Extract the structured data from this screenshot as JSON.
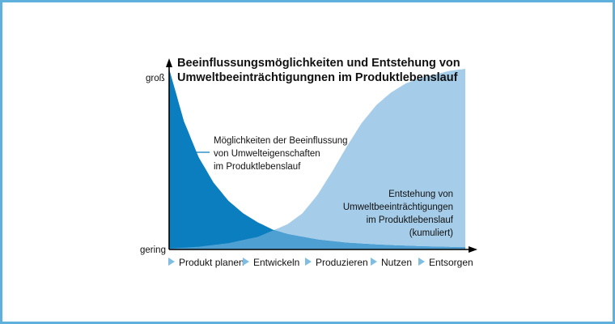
{
  "chart_data": {
    "type": "area",
    "title_lines": [
      "Beeinflussungsmöglichkeiten und Entstehung von",
      "Umweltbeeinträchtigungnen im Produktlebenslauf"
    ],
    "y_tick_labels": {
      "high": "groß",
      "low": "gering"
    },
    "stages": [
      "Produkt planen",
      "Entwickeln",
      "Produzieren",
      "Nutzen",
      "Entsorgen"
    ],
    "series": [
      {
        "name_lines": [
          "Möglichkeiten der Beeinflussung",
          "von Umwelteigenschaften",
          "im Produktlebenslauf"
        ],
        "shape": "decreasing (exponential decay)",
        "color": "#0b7ec0",
        "x": [
          0,
          0.05,
          0.1,
          0.15,
          0.2,
          0.25,
          0.3,
          0.35,
          0.4,
          0.5,
          0.6,
          0.7,
          0.8,
          0.9,
          1.0
        ],
        "y": [
          1.0,
          0.71,
          0.51,
          0.37,
          0.27,
          0.2,
          0.15,
          0.11,
          0.085,
          0.055,
          0.037,
          0.027,
          0.02,
          0.015,
          0.012
        ]
      },
      {
        "name_lines": [
          "Entstehung von",
          "Umweltbeeinträchtigungen",
          "im Produktlebenslauf",
          "(kumuliert)"
        ],
        "shape": "increasing (S-curve, cumulative)",
        "color": "#a5cce8",
        "x": [
          0,
          0.1,
          0.2,
          0.3,
          0.4,
          0.45,
          0.5,
          0.55,
          0.6,
          0.65,
          0.7,
          0.75,
          0.8,
          0.85,
          0.9,
          0.95,
          1.0
        ],
        "y": [
          0.005,
          0.015,
          0.035,
          0.07,
          0.14,
          0.2,
          0.3,
          0.43,
          0.57,
          0.7,
          0.8,
          0.87,
          0.92,
          0.95,
          0.97,
          0.99,
          1.0
        ]
      }
    ]
  }
}
